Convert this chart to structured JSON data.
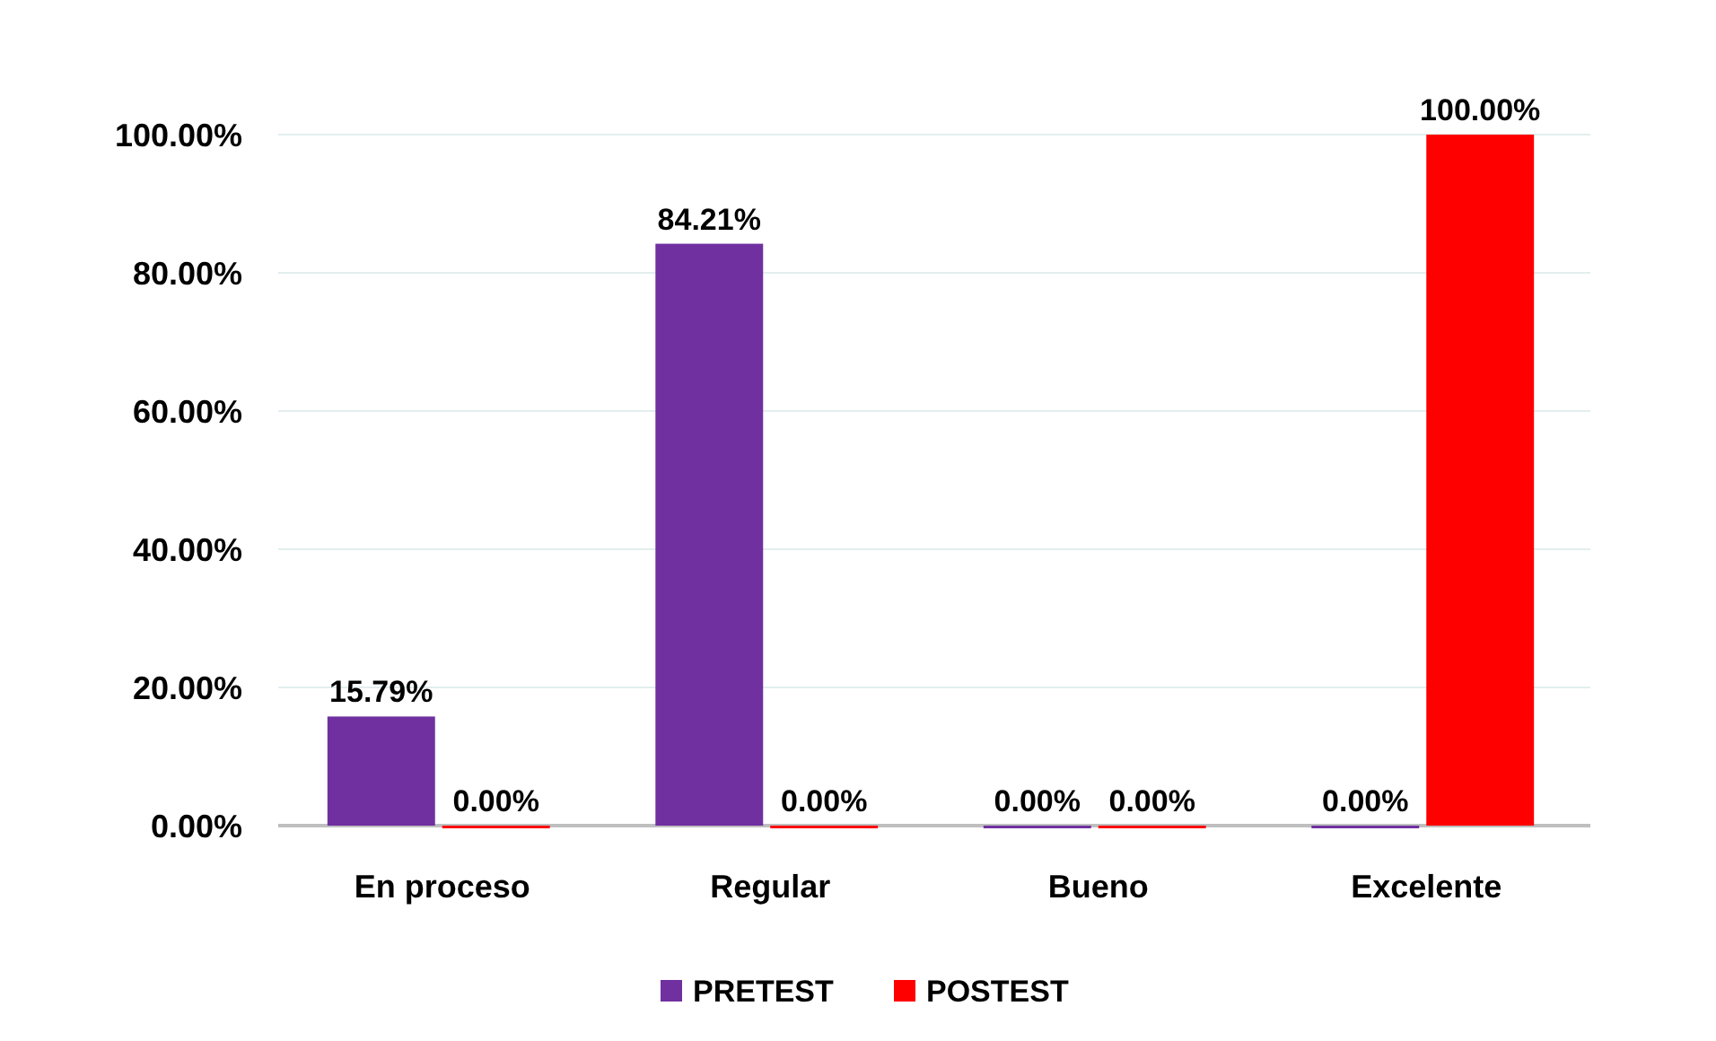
{
  "chart_data": {
    "type": "bar",
    "categories": [
      "En proceso",
      "Regular",
      "Bueno",
      "Excelente"
    ],
    "series": [
      {
        "name": "PRETEST",
        "color": "#7030a0",
        "values": [
          15.79,
          84.21,
          0,
          0
        ],
        "value_labels": [
          "15.79%",
          "84.21%",
          "0.00%",
          "0.00%"
        ]
      },
      {
        "name": "POSTEST",
        "color": "#ff0000",
        "values": [
          0,
          0,
          0,
          100
        ],
        "value_labels": [
          "0.00%",
          "0.00%",
          "0.00%",
          "100.00%"
        ]
      }
    ],
    "ylim": [
      0,
      100
    ],
    "yticks": [
      {
        "value": 0,
        "label": "0.00%"
      },
      {
        "value": 20,
        "label": "20.00%"
      },
      {
        "value": 40,
        "label": "40.00%"
      },
      {
        "value": 60,
        "label": "60.00%"
      },
      {
        "value": 80,
        "label": "80.00%"
      },
      {
        "value": 100,
        "label": "100.00%"
      }
    ],
    "grid": "y",
    "legend": "bottom"
  }
}
